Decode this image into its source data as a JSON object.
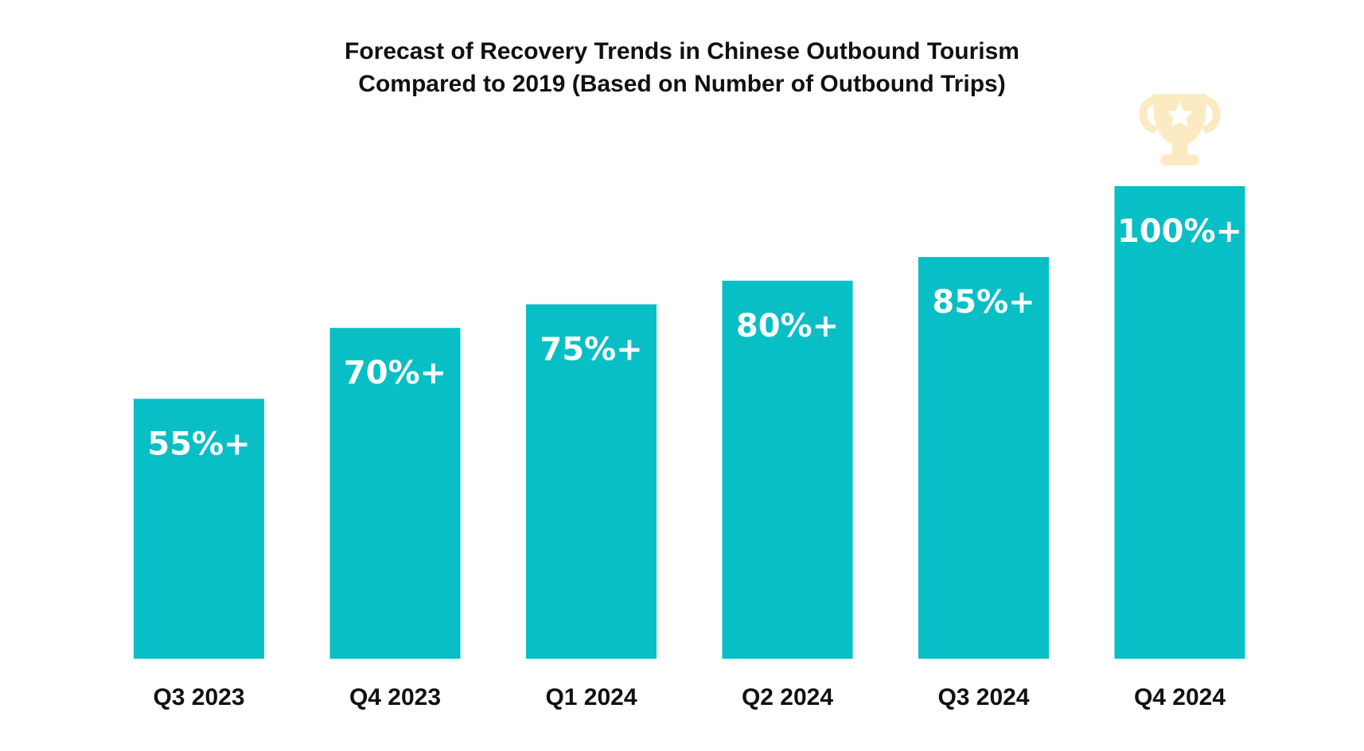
{
  "chart_data": {
    "type": "bar",
    "title_line1": "Forecast of Recovery Trends in Chinese Outbound Tourism",
    "title_line2": "Compared to 2019 (Based on Number of Outbound Trips)",
    "xlabel": "",
    "ylabel": "",
    "categories": [
      "Q3 2023",
      "Q4 2023",
      "Q1 2024",
      "Q2 2024",
      "Q3 2024",
      "Q4 2024"
    ],
    "values": [
      55,
      70,
      75,
      80,
      85,
      100
    ],
    "data_labels": [
      "55%+",
      "70%+",
      "75%+",
      "80%+",
      "85%+",
      "100%+"
    ],
    "ylim": [
      0,
      100
    ],
    "grid": false,
    "legend": "none",
    "bar_color": "#07BFC5",
    "trophy_icon": "trophy-icon",
    "trophy_color": "#FCEBC2"
  }
}
